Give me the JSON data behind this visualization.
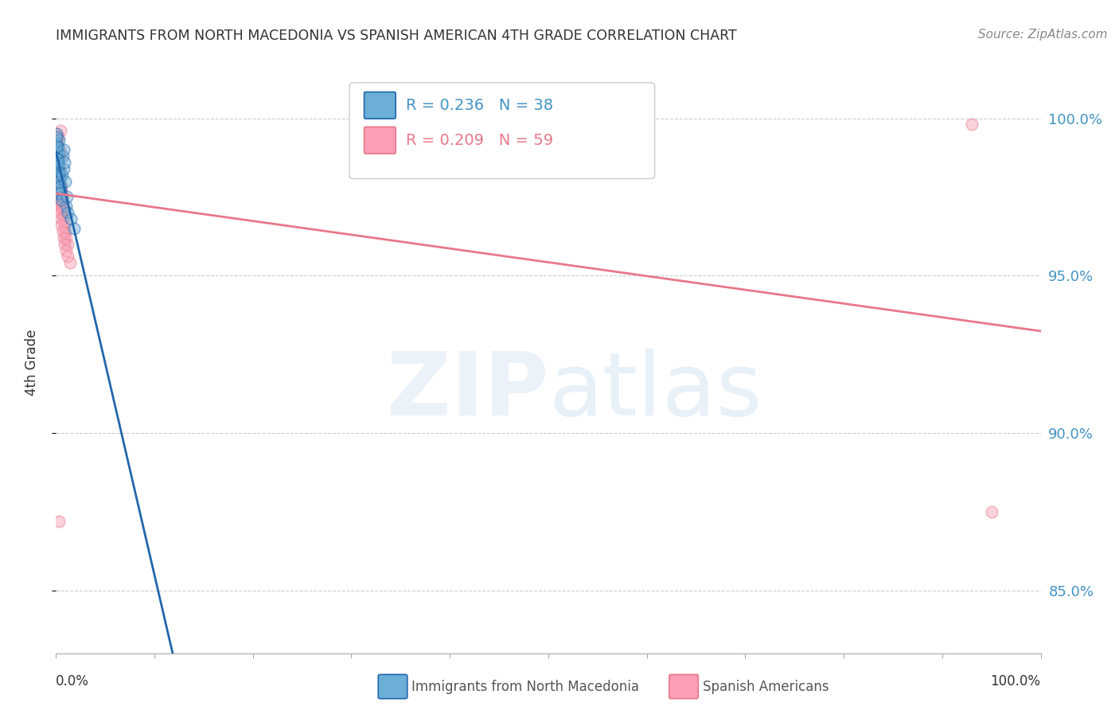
{
  "title": "IMMIGRANTS FROM NORTH MACEDONIA VS SPANISH AMERICAN 4TH GRADE CORRELATION CHART",
  "source": "Source: ZipAtlas.com",
  "ylabel": "4th Grade",
  "xlim": [
    0.0,
    100.0
  ],
  "ylim": [
    83.0,
    101.5
  ],
  "blue_R": 0.236,
  "blue_N": 38,
  "pink_R": 0.209,
  "pink_N": 59,
  "blue_color": "#6baed6",
  "pink_color": "#fa9fb5",
  "blue_line_color": "#2166ac",
  "pink_line_color": "#e8788a",
  "legend_R_color": "#4393c3",
  "legend_N_color": "#e8788a",
  "right_axis_color": "#4393c3",
  "title_color": "#333333",
  "source_color": "#888888",
  "background_color": "#ffffff",
  "grid_color": "#cccccc",
  "ytick_positions": [
    85.0,
    90.0,
    95.0,
    100.0
  ],
  "ytick_labels": [
    "85.0%",
    "90.0%",
    "95.0%",
    "100.0%"
  ],
  "blue_x": [
    0.05,
    0.08,
    0.1,
    0.12,
    0.15,
    0.18,
    0.2,
    0.22,
    0.25,
    0.28,
    0.3,
    0.35,
    0.4,
    0.45,
    0.5,
    0.6,
    0.7,
    0.8,
    1.0,
    1.2,
    1.5,
    1.8,
    0.06,
    0.09,
    0.11,
    0.14,
    0.17,
    0.21,
    0.26,
    0.32,
    0.38,
    0.42,
    0.55,
    0.65,
    0.75,
    0.85,
    0.95,
    1.1
  ],
  "blue_y": [
    99.5,
    99.2,
    99.0,
    98.8,
    98.6,
    98.4,
    99.1,
    98.9,
    98.7,
    98.5,
    99.3,
    98.3,
    98.1,
    97.9,
    97.7,
    97.5,
    98.8,
    99.0,
    97.2,
    97.0,
    96.8,
    96.5,
    99.4,
    99.1,
    98.7,
    98.5,
    98.3,
    98.6,
    98.2,
    98.0,
    97.8,
    97.6,
    97.4,
    98.2,
    98.4,
    98.6,
    98.0,
    97.5
  ],
  "pink_x": [
    0.04,
    0.06,
    0.08,
    0.1,
    0.12,
    0.14,
    0.16,
    0.18,
    0.2,
    0.22,
    0.25,
    0.28,
    0.3,
    0.35,
    0.38,
    0.4,
    0.42,
    0.45,
    0.48,
    0.5,
    0.55,
    0.6,
    0.65,
    0.7,
    0.75,
    0.8,
    0.85,
    0.95,
    1.05,
    1.15,
    0.05,
    0.07,
    0.09,
    0.11,
    0.13,
    0.15,
    0.17,
    0.19,
    0.21,
    0.24,
    0.27,
    0.29,
    0.32,
    0.36,
    0.39,
    0.43,
    0.47,
    0.52,
    0.58,
    0.68,
    0.78,
    0.9,
    1.0,
    1.2,
    1.4,
    93.0,
    95.0,
    0.33,
    0.44
  ],
  "pink_y": [
    99.3,
    99.1,
    99.0,
    98.8,
    98.6,
    98.4,
    99.2,
    98.9,
    98.7,
    98.5,
    99.4,
    98.3,
    98.1,
    97.9,
    97.7,
    99.0,
    98.8,
    97.5,
    97.3,
    97.1,
    97.8,
    97.6,
    97.4,
    97.2,
    97.0,
    96.8,
    96.6,
    96.4,
    96.2,
    96.0,
    99.5,
    99.2,
    98.7,
    98.5,
    98.3,
    98.1,
    97.9,
    97.7,
    98.6,
    98.4,
    98.2,
    98.0,
    97.8,
    97.6,
    97.4,
    97.2,
    97.0,
    96.8,
    96.6,
    96.4,
    96.2,
    96.0,
    95.8,
    95.6,
    95.4,
    99.8,
    87.5,
    87.2,
    99.6
  ],
  "marker_size": 110,
  "marker_alpha": 0.45,
  "line_width": 2.0
}
